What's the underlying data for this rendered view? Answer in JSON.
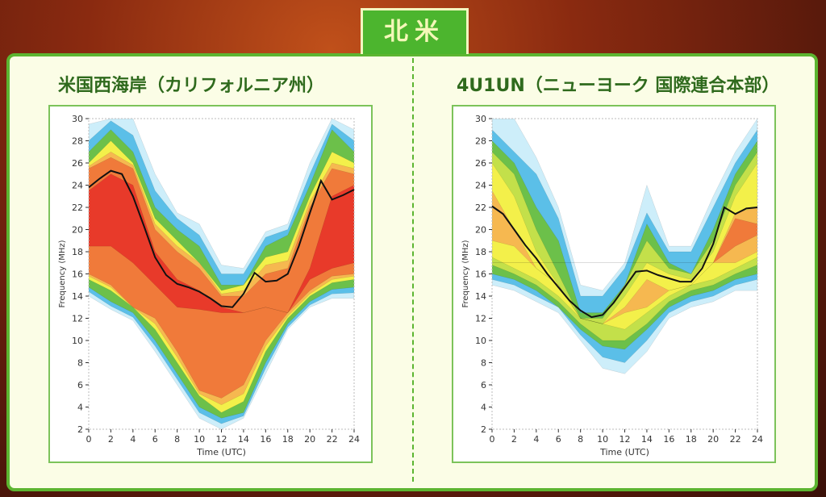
{
  "header": {
    "region_label": "北米"
  },
  "chart_data": [
    {
      "type": "heatmap",
      "title": "米国西海岸（カリフォルニア州）",
      "xlabel": "Time (UTC)",
      "ylabel": "Frequency (MHz)",
      "xlim": [
        0,
        24
      ],
      "ylim": [
        2,
        30
      ],
      "xticks": [
        0,
        2,
        4,
        6,
        8,
        10,
        12,
        14,
        16,
        18,
        20,
        22,
        24
      ],
      "yticks": [
        2,
        4,
        6,
        8,
        10,
        12,
        14,
        16,
        18,
        20,
        22,
        24,
        26,
        28,
        30
      ],
      "band_hours": [
        0,
        2,
        4,
        6,
        8,
        10,
        12,
        14,
        16,
        18,
        20,
        22,
        24
      ],
      "bands": [
        {
          "color": "#cdeefa",
          "hi": [
            29.5,
            30,
            30,
            25,
            21.5,
            20.5,
            16.8,
            16.5,
            19.8,
            20.5,
            26,
            30,
            29
          ],
          "lo": [
            14,
            12.8,
            11.8,
            9,
            6,
            3,
            2,
            3,
            7,
            11,
            13,
            13.8,
            13.8
          ]
        },
        {
          "color": "#5bbfe8",
          "hi": [
            28,
            29.8,
            28.5,
            23.5,
            21,
            19.5,
            16,
            16,
            19.3,
            20,
            25,
            29.5,
            28
          ],
          "lo": [
            14.4,
            13.1,
            12.1,
            9.5,
            6.5,
            3.5,
            2.5,
            3.2,
            7.5,
            11.2,
            13.2,
            14.2,
            14.3
          ]
        },
        {
          "color": "#6cc04a",
          "hi": [
            27,
            29,
            27,
            22,
            20,
            18.5,
            15,
            15,
            18.5,
            19.5,
            24,
            29,
            27
          ],
          "lo": [
            14.8,
            13.5,
            12.5,
            10,
            7,
            4,
            3,
            3.5,
            8,
            11.5,
            13.5,
            14.6,
            14.8
          ]
        },
        {
          "color": "#f3f04a",
          "hi": [
            26,
            28,
            26,
            21,
            19,
            17,
            14.5,
            15,
            17.5,
            18,
            23,
            27,
            26
          ],
          "lo": [
            15.5,
            14.5,
            13,
            11,
            8,
            5,
            3.5,
            4.5,
            9,
            12,
            14,
            15.2,
            15.5
          ]
        },
        {
          "color": "#f6b850",
          "hi": [
            25.7,
            27,
            25.8,
            20.5,
            18.5,
            17,
            14.2,
            14.5,
            16.8,
            17.2,
            22.5,
            26,
            25.5
          ],
          "lo": [
            15.8,
            14.8,
            13,
            11.5,
            8.5,
            5.2,
            4.2,
            5.2,
            9.5,
            12.2,
            14.2,
            15.5,
            15.8
          ]
        },
        {
          "color": "#f07a3a",
          "hi": [
            25.5,
            26.5,
            25.5,
            20,
            18,
            16.5,
            14,
            14,
            16,
            16.5,
            22,
            25.5,
            25
          ],
          "lo": [
            16,
            15,
            13,
            12,
            9,
            5.5,
            4.8,
            6,
            10,
            12.5,
            14.5,
            15.8,
            16
          ]
        },
        {
          "color": "#e83a2a",
          "hi": [
            23.5,
            25,
            24,
            18,
            15.5,
            14.5,
            13,
            12.5,
            13,
            12.5,
            16.5,
            23,
            24
          ],
          "lo": [
            18.5,
            18.5,
            17,
            15,
            13,
            12.8,
            12.5,
            12.5,
            13,
            12.5,
            15.5,
            16.5,
            17
          ]
        }
      ],
      "line": {
        "color": "#111111",
        "hours": [
          0,
          1,
          2,
          3,
          4,
          5,
          6,
          7,
          8,
          9,
          10,
          11,
          12,
          13,
          14,
          15,
          16,
          17,
          18,
          19,
          20,
          21,
          22,
          23,
          24
        ],
        "values": [
          23.8,
          24.6,
          25.3,
          25,
          23,
          20.3,
          17.5,
          15.9,
          15.1,
          14.8,
          14.4,
          13.8,
          13.1,
          13.0,
          14.2,
          16.1,
          15.3,
          15.4,
          16.0,
          18.5,
          21.5,
          24.4,
          22.7,
          23.1,
          23.6
        ]
      }
    },
    {
      "type": "heatmap",
      "title": "4U1UN（ニューヨーク 国際連合本部）",
      "xlabel": "Time (UTC)",
      "ylabel": "Frequency (MHz)",
      "xlim": [
        0,
        24
      ],
      "ylim": [
        2,
        30
      ],
      "xticks": [
        0,
        2,
        4,
        6,
        8,
        10,
        12,
        14,
        16,
        18,
        20,
        22,
        24
      ],
      "yticks": [
        2,
        4,
        6,
        8,
        10,
        12,
        14,
        16,
        18,
        20,
        22,
        24,
        26,
        28,
        30
      ],
      "band_hours": [
        0,
        2,
        4,
        6,
        8,
        10,
        12,
        14,
        16,
        18,
        20,
        22,
        24
      ],
      "bands": [
        {
          "color": "#cdeefa",
          "hi": [
            30,
            30,
            26.5,
            22,
            15,
            14.5,
            17,
            24,
            18.5,
            18.5,
            23,
            27,
            30
          ],
          "lo": [
            15,
            14.5,
            13.5,
            12.5,
            10,
            7.5,
            7,
            9,
            12,
            13,
            13.5,
            14.5,
            14.5
          ]
        },
        {
          "color": "#5bbfe8",
          "hi": [
            29,
            27,
            25,
            21,
            14,
            14,
            16.5,
            21.5,
            18,
            18,
            22,
            26,
            29
          ],
          "lo": [
            15.5,
            15,
            14,
            13,
            10.5,
            8.5,
            8,
            10,
            12.5,
            13.5,
            14,
            15,
            15.5
          ]
        },
        {
          "color": "#6cc04a",
          "hi": [
            28,
            26,
            22,
            19,
            12.5,
            12.5,
            15,
            20.5,
            17,
            16,
            20,
            25,
            28
          ],
          "lo": [
            16,
            15.5,
            14.5,
            13,
            11,
            9.5,
            9.2,
            11,
            13,
            14,
            14.5,
            15.5,
            16
          ]
        },
        {
          "color": "#c3e04a",
          "hi": [
            27,
            25,
            20,
            16,
            12,
            12,
            15,
            19,
            16.5,
            16,
            19,
            24,
            27
          ],
          "lo": [
            16.8,
            16,
            15,
            13.5,
            11.5,
            10,
            10,
            11.5,
            13.5,
            14.5,
            15,
            16,
            16.8
          ]
        },
        {
          "color": "#f3f04a",
          "hi": [
            26,
            23,
            18,
            15,
            12,
            11.5,
            14,
            17,
            16,
            15.5,
            18,
            23,
            26
          ],
          "lo": [
            17.5,
            16.5,
            15.5,
            14,
            12,
            11.5,
            11,
            12.5,
            14,
            15,
            15.5,
            16.5,
            17.5
          ]
        },
        {
          "color": "#f6b850",
          "hi": [
            23.5,
            20,
            16.5,
            15,
            12,
            11.5,
            13,
            15.5,
            14.5,
            15,
            17,
            21.5,
            22
          ],
          "lo": [
            19,
            18.5,
            16.5,
            15,
            12,
            11.5,
            12.5,
            13,
            14.5,
            15,
            17,
            17,
            18
          ]
        },
        {
          "color": "#f07a3a",
          "hi": [
            17,
            17,
            17,
            17,
            17,
            17,
            17,
            17,
            17,
            17,
            17,
            21,
            20.5
          ],
          "lo": [
            17,
            17,
            17,
            17,
            17,
            17,
            17,
            17,
            17,
            17,
            17,
            18.5,
            19.5
          ]
        }
      ],
      "line": {
        "color": "#111111",
        "hours": [
          0,
          1,
          2,
          3,
          4,
          5,
          6,
          7,
          8,
          9,
          10,
          11,
          12,
          13,
          14,
          15,
          16,
          17,
          18,
          19,
          20,
          21,
          22,
          23,
          24
        ],
        "values": [
          22.1,
          21.4,
          20,
          18.6,
          17.4,
          16,
          14.8,
          13.6,
          12.7,
          12.1,
          12.3,
          13.4,
          14.8,
          16.2,
          16.3,
          15.9,
          15.6,
          15.3,
          15.3,
          16.5,
          18.7,
          22,
          21.4,
          21.9,
          22.0
        ]
      }
    }
  ]
}
